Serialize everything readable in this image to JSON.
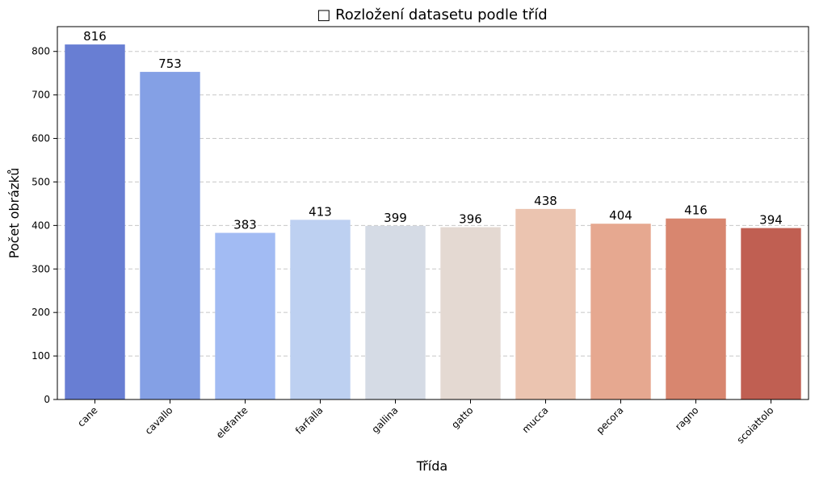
{
  "chart_data": {
    "type": "bar",
    "title": "□ Rozložení datasetu podle tříd",
    "xlabel": "Třída",
    "ylabel": "Počet obrázků",
    "categories": [
      "cane",
      "cavallo",
      "elefante",
      "farfalla",
      "gallina",
      "gatto",
      "mucca",
      "pecora",
      "ragno",
      "scoiattolo"
    ],
    "values": [
      816,
      753,
      383,
      413,
      399,
      396,
      438,
      404,
      416,
      394
    ],
    "colors": [
      "#687ed3",
      "#84a0e5",
      "#a2bbf3",
      "#bdd0f1",
      "#d5dbe5",
      "#e4d9d2",
      "#ebc4b0",
      "#e6a890",
      "#d8866f",
      "#c05f52"
    ],
    "ylim": [
      0,
      857
    ],
    "yticks": [
      0,
      100,
      200,
      300,
      400,
      500,
      600,
      700,
      800
    ],
    "grid": "y-dashed",
    "legend": "none"
  }
}
